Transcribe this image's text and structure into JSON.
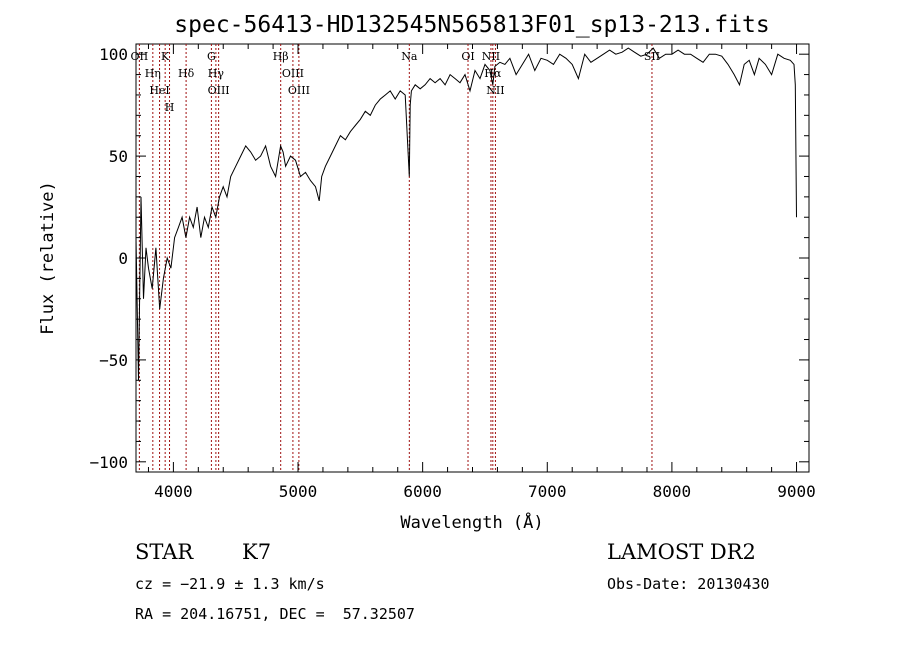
{
  "chart_data": {
    "type": "line",
    "title": "spec-56413-HD132545N565813F01_sp13-213.fits",
    "xlabel": "Wavelength (Å)",
    "ylabel": "Flux (relative)",
    "xlim": [
      3700,
      9100
    ],
    "ylim": [
      -105,
      105
    ],
    "xticks": [
      4000,
      5000,
      6000,
      7000,
      8000,
      9000
    ],
    "yticks": [
      -100,
      -50,
      0,
      50,
      100
    ],
    "grid": false,
    "series": [
      {
        "x": [
          3700,
          3720,
          3740,
          3760,
          3780,
          3800,
          3830,
          3860,
          3890,
          3920,
          3950,
          3980,
          4010,
          4040,
          4070,
          4100,
          4130,
          4160,
          4190,
          4220,
          4250,
          4280,
          4310,
          4340,
          4370,
          4400,
          4430,
          4460,
          4500,
          4540,
          4580,
          4620,
          4660,
          4700,
          4740,
          4780,
          4820,
          4860,
          4880,
          4900,
          4940,
          4980,
          5020,
          5060,
          5100,
          5140,
          5170,
          5190,
          5220,
          5260,
          5300,
          5340,
          5380,
          5420,
          5460,
          5500,
          5540,
          5580,
          5620,
          5660,
          5700,
          5740,
          5780,
          5820,
          5860,
          5893,
          5900,
          5910,
          5940,
          5980,
          6020,
          6060,
          6100,
          6140,
          6180,
          6220,
          6260,
          6300,
          6340,
          6380,
          6420,
          6460,
          6500,
          6540,
          6563,
          6580,
          6620,
          6660,
          6700,
          6750,
          6800,
          6850,
          6900,
          6950,
          7000,
          7050,
          7100,
          7150,
          7200,
          7250,
          7300,
          7350,
          7400,
          7450,
          7500,
          7550,
          7600,
          7650,
          7700,
          7750,
          7800,
          7850,
          7900,
          7950,
          8000,
          8050,
          8100,
          8150,
          8200,
          8250,
          8300,
          8350,
          8400,
          8450,
          8500,
          8542,
          8580,
          8620,
          8662,
          8700,
          8750,
          8800,
          8850,
          8900,
          8950,
          8980,
          8990,
          9000
        ],
        "y": [
          10,
          -60,
          30,
          -20,
          5,
          -5,
          -15,
          5,
          -25,
          -10,
          0,
          -5,
          10,
          15,
          20,
          10,
          20,
          15,
          25,
          10,
          20,
          15,
          25,
          20,
          30,
          35,
          30,
          40,
          45,
          50,
          55,
          52,
          48,
          50,
          55,
          45,
          40,
          55,
          52,
          45,
          50,
          48,
          40,
          42,
          38,
          35,
          28,
          40,
          45,
          50,
          55,
          60,
          58,
          62,
          65,
          68,
          72,
          70,
          75,
          78,
          80,
          82,
          78,
          82,
          80,
          40,
          75,
          82,
          85,
          83,
          85,
          88,
          86,
          88,
          85,
          90,
          88,
          86,
          90,
          82,
          92,
          88,
          95,
          92,
          85,
          94,
          96,
          95,
          98,
          90,
          95,
          100,
          92,
          98,
          97,
          95,
          100,
          98,
          95,
          88,
          100,
          96,
          98,
          100,
          102,
          100,
          101,
          103,
          101,
          99,
          100,
          103,
          98,
          100,
          100,
          102,
          100,
          100,
          98,
          96,
          100,
          100,
          99,
          95,
          90,
          85,
          95,
          97,
          90,
          98,
          95,
          90,
          100,
          98,
          97,
          95,
          85,
          20
        ]
      }
    ],
    "emission_lines": [
      {
        "label": "OII",
        "x": 3727
      },
      {
        "label": "Hη",
        "x": 3835
      },
      {
        "label": "HeI",
        "x": 3889
      },
      {
        "label": "K",
        "x": 3934
      },
      {
        "label": "H",
        "x": 3969
      },
      {
        "label": "Hδ",
        "x": 4102
      },
      {
        "label": "G",
        "x": 4305
      },
      {
        "label": "Hγ",
        "x": 4341
      },
      {
        "label": "OIII",
        "x": 4363
      },
      {
        "label": "Hβ",
        "x": 4861
      },
      {
        "label": "OIII",
        "x": 4959
      },
      {
        "label": "OIII",
        "x": 5007
      },
      {
        "label": "Na",
        "x": 5893
      },
      {
        "label": "OI",
        "x": 6364
      },
      {
        "label": "NII",
        "x": 6548
      },
      {
        "label": "Hα",
        "x": 6563
      },
      {
        "label": "NII",
        "x": 6584
      },
      {
        "label": "SII",
        "x": 7840
      }
    ]
  },
  "info": {
    "object_class": "STAR",
    "subclass": "K7",
    "redshift": "cz = −21.9 ± 1.3 km/s",
    "coords": "RA = 204.16751, DEC =  57.32507",
    "survey": "LAMOST DR2",
    "obs_date": "Obs-Date: 20130430"
  },
  "colors": {
    "line_marker": "#a01010",
    "spectrum": "#000000"
  }
}
